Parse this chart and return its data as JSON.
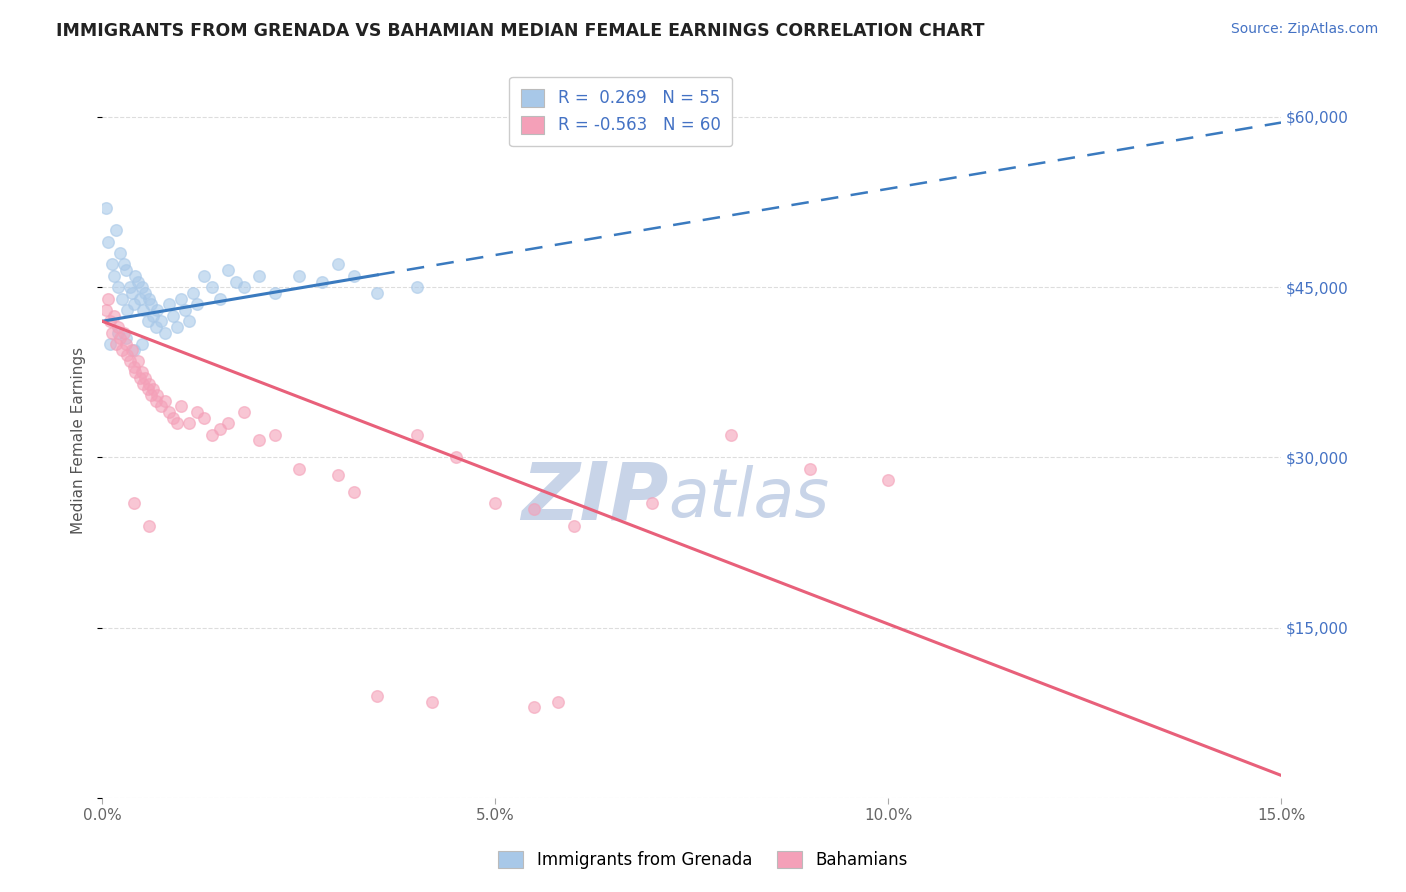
{
  "title": "IMMIGRANTS FROM GRENADA VS BAHAMIAN MEDIAN FEMALE EARNINGS CORRELATION CHART",
  "source": "Source: ZipAtlas.com",
  "ylabel": "Median Female Earnings",
  "y_ticks": [
    0,
    15000,
    30000,
    45000,
    60000
  ],
  "y_tick_labels": [
    "",
    "$15,000",
    "$30,000",
    "$45,000",
    "$60,000"
  ],
  "x_min": 0.0,
  "x_max": 15.0,
  "y_min": 0,
  "y_max": 63000,
  "legend_blue_r": "0.269",
  "legend_blue_n": "55",
  "legend_pink_r": "-0.563",
  "legend_pink_n": "60",
  "blue_color": "#a8c8e8",
  "pink_color": "#f4a0b8",
  "blue_line_color": "#3a7abf",
  "pink_line_color": "#e8607a",
  "blue_scatter": [
    [
      0.05,
      52000
    ],
    [
      0.08,
      49000
    ],
    [
      0.12,
      47000
    ],
    [
      0.15,
      46000
    ],
    [
      0.18,
      50000
    ],
    [
      0.2,
      45000
    ],
    [
      0.22,
      48000
    ],
    [
      0.25,
      44000
    ],
    [
      0.28,
      47000
    ],
    [
      0.3,
      46500
    ],
    [
      0.32,
      43000
    ],
    [
      0.35,
      45000
    ],
    [
      0.38,
      44500
    ],
    [
      0.4,
      43500
    ],
    [
      0.42,
      46000
    ],
    [
      0.45,
      45500
    ],
    [
      0.48,
      44000
    ],
    [
      0.5,
      45000
    ],
    [
      0.52,
      43000
    ],
    [
      0.55,
      44500
    ],
    [
      0.58,
      42000
    ],
    [
      0.6,
      44000
    ],
    [
      0.62,
      43500
    ],
    [
      0.65,
      42500
    ],
    [
      0.68,
      41500
    ],
    [
      0.7,
      43000
    ],
    [
      0.75,
      42000
    ],
    [
      0.8,
      41000
    ],
    [
      0.85,
      43500
    ],
    [
      0.9,
      42500
    ],
    [
      0.95,
      41500
    ],
    [
      1.0,
      44000
    ],
    [
      1.05,
      43000
    ],
    [
      1.1,
      42000
    ],
    [
      1.15,
      44500
    ],
    [
      1.2,
      43500
    ],
    [
      1.3,
      46000
    ],
    [
      1.4,
      45000
    ],
    [
      1.5,
      44000
    ],
    [
      1.6,
      46500
    ],
    [
      1.7,
      45500
    ],
    [
      1.8,
      45000
    ],
    [
      2.0,
      46000
    ],
    [
      2.2,
      44500
    ],
    [
      2.5,
      46000
    ],
    [
      2.8,
      45500
    ],
    [
      3.0,
      47000
    ],
    [
      3.2,
      46000
    ],
    [
      3.5,
      44500
    ],
    [
      4.0,
      45000
    ],
    [
      0.1,
      40000
    ],
    [
      0.2,
      41000
    ],
    [
      0.3,
      40500
    ],
    [
      0.4,
      39500
    ],
    [
      0.5,
      40000
    ]
  ],
  "pink_scatter": [
    [
      0.05,
      43000
    ],
    [
      0.08,
      44000
    ],
    [
      0.1,
      42000
    ],
    [
      0.12,
      41000
    ],
    [
      0.15,
      42500
    ],
    [
      0.18,
      40000
    ],
    [
      0.2,
      41500
    ],
    [
      0.22,
      40500
    ],
    [
      0.25,
      39500
    ],
    [
      0.28,
      41000
    ],
    [
      0.3,
      40000
    ],
    [
      0.32,
      39000
    ],
    [
      0.35,
      38500
    ],
    [
      0.38,
      39500
    ],
    [
      0.4,
      38000
    ],
    [
      0.42,
      37500
    ],
    [
      0.45,
      38500
    ],
    [
      0.48,
      37000
    ],
    [
      0.5,
      37500
    ],
    [
      0.52,
      36500
    ],
    [
      0.55,
      37000
    ],
    [
      0.58,
      36000
    ],
    [
      0.6,
      36500
    ],
    [
      0.62,
      35500
    ],
    [
      0.65,
      36000
    ],
    [
      0.68,
      35000
    ],
    [
      0.7,
      35500
    ],
    [
      0.75,
      34500
    ],
    [
      0.8,
      35000
    ],
    [
      0.85,
      34000
    ],
    [
      0.9,
      33500
    ],
    [
      0.95,
      33000
    ],
    [
      1.0,
      34500
    ],
    [
      1.1,
      33000
    ],
    [
      1.2,
      34000
    ],
    [
      1.3,
      33500
    ],
    [
      1.4,
      32000
    ],
    [
      1.5,
      32500
    ],
    [
      1.6,
      33000
    ],
    [
      1.8,
      34000
    ],
    [
      2.0,
      31500
    ],
    [
      2.2,
      32000
    ],
    [
      2.5,
      29000
    ],
    [
      3.0,
      28500
    ],
    [
      3.2,
      27000
    ],
    [
      4.0,
      32000
    ],
    [
      4.5,
      30000
    ],
    [
      5.0,
      26000
    ],
    [
      5.5,
      25500
    ],
    [
      6.0,
      24000
    ],
    [
      7.0,
      26000
    ],
    [
      8.0,
      32000
    ],
    [
      9.0,
      29000
    ],
    [
      10.0,
      28000
    ],
    [
      3.5,
      9000
    ],
    [
      4.2,
      8500
    ],
    [
      5.5,
      8000
    ],
    [
      5.8,
      8500
    ],
    [
      0.4,
      26000
    ],
    [
      0.6,
      24000
    ]
  ],
  "blue_line_x0": 0.0,
  "blue_line_y0": 42000,
  "blue_line_x1": 15.0,
  "blue_line_y1": 59500,
  "blue_solid_x_end": 3.5,
  "pink_line_x0": 0.0,
  "pink_line_y0": 42000,
  "pink_line_x1": 15.0,
  "pink_line_y1": 2000,
  "watermark_zip": "ZIP",
  "watermark_atlas": "atlas",
  "watermark_color": "#c8d4e8",
  "watermark_fontsize": 58,
  "background_color": "#ffffff",
  "grid_color": "#dddddd"
}
